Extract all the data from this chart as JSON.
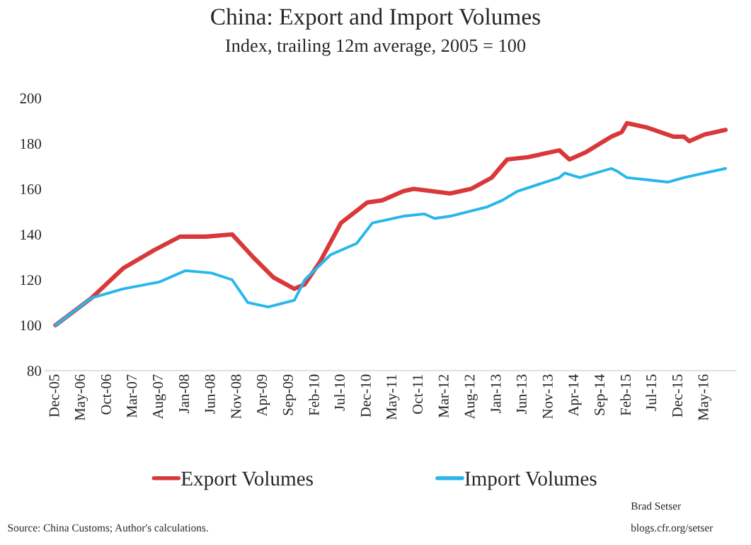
{
  "chart_data": {
    "type": "line",
    "title": "China: Export and Import Volumes",
    "subtitle": "Index, trailing 12m average, 2005 = 100",
    "series": [
      {
        "name": "Export Volumes",
        "color": "#d9383a",
        "x": [
          "2005-12",
          "2006-07",
          "2007-01",
          "2007-07",
          "2007-12",
          "2008-05",
          "2008-10",
          "2009-02",
          "2009-06",
          "2009-10",
          "2009-12",
          "2010-03",
          "2010-07",
          "2010-12",
          "2011-03",
          "2011-07",
          "2011-09",
          "2012-04",
          "2012-08",
          "2012-12",
          "2013-03",
          "2013-07",
          "2014-01",
          "2014-03",
          "2014-06",
          "2014-11",
          "2015-01",
          "2015-02",
          "2015-06",
          "2015-11",
          "2016-01",
          "2016-02",
          "2016-05",
          "2016-09"
        ],
        "values": [
          100,
          112,
          125,
          133,
          139,
          139,
          140,
          130,
          121,
          116,
          118,
          128,
          145,
          154,
          155,
          159,
          160,
          158,
          160,
          165,
          173,
          174,
          177,
          173,
          176,
          183,
          185,
          189,
          187,
          183,
          183,
          181,
          184,
          186
        ]
      },
      {
        "name": "Import Volumes",
        "color": "#29b6ec",
        "x": [
          "2005-12",
          "2006-07",
          "2007-01",
          "2007-08",
          "2008-01",
          "2008-06",
          "2008-10",
          "2009-01",
          "2009-05",
          "2009-10",
          "2009-12",
          "2010-05",
          "2010-10",
          "2011-01",
          "2011-07",
          "2011-11",
          "2012-01",
          "2012-04",
          "2012-11",
          "2013-02",
          "2013-05",
          "2014-01",
          "2014-02",
          "2014-05",
          "2014-11",
          "2014-12",
          "2015-02",
          "2015-06",
          "2015-10",
          "2016-01",
          "2016-05",
          "2016-09"
        ],
        "values": [
          100,
          112,
          116,
          119,
          124,
          123,
          120,
          110,
          108,
          111,
          120,
          131,
          136,
          145,
          148,
          149,
          147,
          148,
          152,
          155,
          159,
          165,
          167,
          165,
          169,
          168,
          165,
          164,
          163,
          165,
          167,
          169
        ]
      }
    ],
    "xticks": [
      {
        "value": "2005-12",
        "label": "Dec-05"
      },
      {
        "value": "2006-05",
        "label": "May-06"
      },
      {
        "value": "2006-10",
        "label": "Oct-06"
      },
      {
        "value": "2007-03",
        "label": "Mar-07"
      },
      {
        "value": "2007-08",
        "label": "Aug-07"
      },
      {
        "value": "2008-01",
        "label": "Jan-08"
      },
      {
        "value": "2008-06",
        "label": "Jun-08"
      },
      {
        "value": "2008-11",
        "label": "Nov-08"
      },
      {
        "value": "2009-04",
        "label": "Apr-09"
      },
      {
        "value": "2009-09",
        "label": "Sep-09"
      },
      {
        "value": "2010-02",
        "label": "Feb-10"
      },
      {
        "value": "2010-07",
        "label": "Jul-10"
      },
      {
        "value": "2010-12",
        "label": "Dec-10"
      },
      {
        "value": "2011-05",
        "label": "May-11"
      },
      {
        "value": "2011-10",
        "label": "Oct-11"
      },
      {
        "value": "2012-03",
        "label": "Mar-12"
      },
      {
        "value": "2012-08",
        "label": "Aug-12"
      },
      {
        "value": "2013-01",
        "label": "Jan-13"
      },
      {
        "value": "2013-06",
        "label": "Jun-13"
      },
      {
        "value": "2013-11",
        "label": "Nov-13"
      },
      {
        "value": "2014-04",
        "label": "Apr-14"
      },
      {
        "value": "2014-09",
        "label": "Sep-14"
      },
      {
        "value": "2015-02",
        "label": "Feb-15"
      },
      {
        "value": "2015-07",
        "label": "Jul-15"
      },
      {
        "value": "2015-12",
        "label": "Dec-15"
      },
      {
        "value": "2016-05",
        "label": "May-16"
      }
    ],
    "xlim": [
      "2005-10",
      "2016-11"
    ],
    "ylim": [
      80,
      200
    ],
    "yticks": [
      80,
      100,
      120,
      140,
      160,
      180,
      200
    ],
    "legend": "bottom",
    "marker": "none",
    "line_style": "solid",
    "annotations": [
      "Source: China Customs; Author's calculations.",
      "Brad Setser",
      "blogs.cfr.org/setser"
    ]
  }
}
